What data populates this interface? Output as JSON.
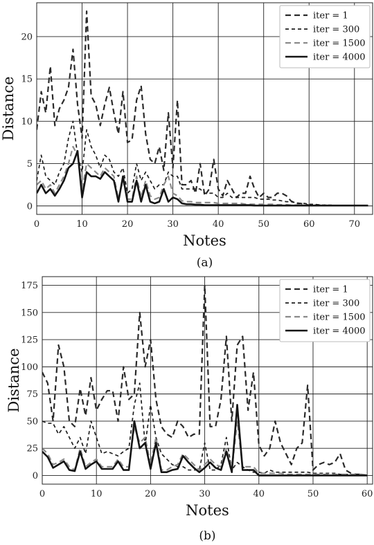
{
  "styles": {
    "iter = 1": {
      "color": "#2a2a2a",
      "dash": "8,5",
      "width": 2.2
    },
    "iter = 300": {
      "color": "#1e1e1e",
      "dash": "5,4",
      "width": 1.7
    },
    "iter = 1500": {
      "color": "#8a8a8a",
      "dash": "8,5",
      "width": 2.2
    },
    "iter = 4000": {
      "color": "#141414",
      "dash": "",
      "width": 2.6
    }
  },
  "chart_data": [
    {
      "type": "line",
      "caption": "(a)",
      "xlabel": "Notes",
      "ylabel": "Distance",
      "xlim": [
        0,
        74
      ],
      "ylim": [
        -1,
        24
      ],
      "xticks": [
        0,
        10,
        20,
        30,
        40,
        50,
        60,
        70
      ],
      "yticks": [
        0,
        5,
        10,
        15,
        20
      ],
      "grid": true,
      "legend": "top-right",
      "series": [
        {
          "name": "iter = 1",
          "values": [
            9,
            13.5,
            11,
            16.5,
            9.5,
            11.5,
            12.5,
            14,
            18.5,
            12,
            8,
            23,
            13,
            12,
            9.5,
            12,
            14,
            11,
            8.5,
            13.5,
            7.5,
            7.8,
            12.5,
            14.2,
            8.5,
            5.5,
            5,
            7,
            4.2,
            11,
            4.5,
            12.5,
            2.5,
            2.5,
            3,
            1.5,
            5,
            1.2,
            2,
            5.5,
            2,
            1.2,
            3,
            2,
            1,
            1.5,
            1.5,
            3.5,
            2,
            1,
            1.5,
            1,
            1,
            1.5,
            1.5,
            1.2,
            0.6,
            0.3,
            0.3,
            0.2,
            0.1,
            0.1,
            0.1,
            0.1,
            0.05,
            0.05,
            0.05,
            0.05,
            0.05,
            0.05,
            0.05,
            0.05,
            0.05,
            0.05
          ]
        },
        {
          "name": "iter = 300",
          "values": [
            3,
            6,
            3.5,
            3,
            2.5,
            4,
            5,
            8,
            10,
            6,
            4,
            9,
            7,
            6,
            4.5,
            6,
            5.5,
            4,
            3.5,
            4.5,
            1.5,
            2,
            5,
            3,
            4,
            3,
            2,
            2.5,
            2.5,
            4,
            3.5,
            3.5,
            2,
            2,
            2,
            2,
            2,
            1.5,
            1.5,
            1.5,
            1,
            1,
            1.5,
            1,
            1,
            1,
            1,
            1,
            1,
            0.8,
            0.8,
            0.8,
            0.7,
            0.7,
            0.6,
            0.5,
            0.5,
            0.4,
            0.3,
            0.3,
            0.2,
            0.2,
            0.15,
            0.1,
            0.1,
            0.1,
            0.05,
            0.05,
            0.05,
            0.05,
            0.05,
            0.05,
            0.05,
            0.05
          ]
        },
        {
          "name": "iter = 1500",
          "values": [
            2.5,
            3,
            2,
            2.5,
            1.5,
            2.5,
            3.5,
            5,
            7,
            6,
            2,
            5,
            4.5,
            4,
            3.5,
            4.5,
            4,
            3.5,
            0.8,
            3,
            0.8,
            0.8,
            3.5,
            1,
            3,
            1.2,
            0.8,
            1,
            2.5,
            3.5,
            1.5,
            1.2,
            0.6,
            0.5,
            0.5,
            0.4,
            0.4,
            0.4,
            0.4,
            0.4,
            0.3,
            0.3,
            0.3,
            0.3,
            0.3,
            0.3,
            0.2,
            0.2,
            0.2,
            0.2,
            0.2,
            0.2,
            0.2,
            0.15,
            0.15,
            0.15,
            0.1,
            0.1,
            0.1,
            0.1,
            0.05,
            0.05,
            0.05,
            0.05,
            0.05,
            0.05,
            0.05,
            0.05,
            0.05,
            0.05,
            0.05,
            0.05,
            0.05,
            0.05
          ]
        },
        {
          "name": "iter = 4000",
          "values": [
            1.5,
            2.5,
            1.5,
            2,
            1.2,
            2,
            3,
            4.5,
            5,
            6.5,
            1,
            4,
            3.5,
            3.5,
            3.2,
            4,
            3.5,
            3,
            0.5,
            3.5,
            0.5,
            0.5,
            3,
            0.5,
            2.5,
            0.5,
            0.3,
            0.5,
            2,
            0.5,
            1,
            0.8,
            0.3,
            0.2,
            0.2,
            0.15,
            0.15,
            0.1,
            0.1,
            0.1,
            0.1,
            0.1,
            0.1,
            0.1,
            0.1,
            0.1,
            0.1,
            0.1,
            0.05,
            0.05,
            0.05,
            0.05,
            0.05,
            0.05,
            0.05,
            0.05,
            0.05,
            0.05,
            0.05,
            0.05,
            0.05,
            0.05,
            0.05,
            0.05,
            0.05,
            0.05,
            0.05,
            0.05,
            0.05,
            0.05,
            0.05,
            0.05,
            0.05,
            0.05
          ]
        }
      ]
    },
    {
      "type": "line",
      "caption": "(b)",
      "xlabel": "Notes",
      "ylabel": "Distance",
      "xlim": [
        0,
        61
      ],
      "ylim": [
        -8,
        183
      ],
      "xticks": [
        0,
        10,
        20,
        30,
        40,
        50,
        60
      ],
      "yticks": [
        0,
        25,
        50,
        75,
        100,
        125,
        150,
        175
      ],
      "grid": true,
      "legend": "top-right",
      "series": [
        {
          "name": "iter = 1",
          "values": [
            95,
            85,
            50,
            120,
            100,
            50,
            45,
            80,
            55,
            90,
            60,
            70,
            78,
            78,
            50,
            100,
            70,
            75,
            150,
            100,
            125,
            70,
            45,
            38,
            35,
            50,
            45,
            35,
            38,
            38,
            175,
            45,
            45,
            70,
            128,
            50,
            120,
            128,
            60,
            95,
            28,
            18,
            25,
            50,
            30,
            20,
            10,
            25,
            30,
            83,
            5,
            10,
            12,
            10,
            12,
            20,
            5,
            2,
            1,
            1,
            0
          ]
        },
        {
          "name": "iter = 300",
          "values": [
            50,
            48,
            48,
            38,
            45,
            35,
            25,
            35,
            20,
            50,
            35,
            20,
            22,
            20,
            18,
            22,
            25,
            65,
            85,
            28,
            65,
            35,
            20,
            15,
            10,
            8,
            8,
            5,
            5,
            5,
            30,
            5,
            5,
            10,
            35,
            5,
            12,
            8,
            5,
            3,
            3,
            2,
            5,
            3,
            3,
            3,
            3,
            3,
            3,
            3,
            2,
            2,
            2,
            2,
            2,
            1,
            1,
            1,
            1,
            1,
            0
          ]
        },
        {
          "name": "iter = 1500",
          "values": [
            25,
            20,
            10,
            12,
            15,
            8,
            5,
            25,
            8,
            12,
            15,
            8,
            8,
            8,
            15,
            8,
            8,
            45,
            30,
            35,
            10,
            35,
            5,
            5,
            8,
            10,
            20,
            15,
            10,
            5,
            10,
            15,
            10,
            8,
            25,
            5,
            50,
            8,
            8,
            8,
            2,
            2,
            2,
            2,
            2,
            1,
            1,
            1,
            1,
            1,
            1,
            1,
            1,
            1,
            1,
            1,
            1,
            1,
            1,
            1,
            0
          ]
        },
        {
          "name": "iter = 4000",
          "values": [
            22,
            17,
            7,
            10,
            13,
            5,
            4,
            22,
            6,
            10,
            13,
            6,
            6,
            6,
            13,
            5,
            5,
            50,
            25,
            30,
            6,
            30,
            3,
            3,
            5,
            6,
            18,
            12,
            7,
            3,
            7,
            12,
            7,
            5,
            22,
            3,
            65,
            5,
            5,
            5,
            0,
            0,
            0,
            0,
            0,
            0,
            0,
            0,
            0,
            0,
            0,
            0,
            0,
            0,
            0,
            0,
            0,
            0,
            0,
            0,
            0
          ]
        }
      ]
    }
  ]
}
